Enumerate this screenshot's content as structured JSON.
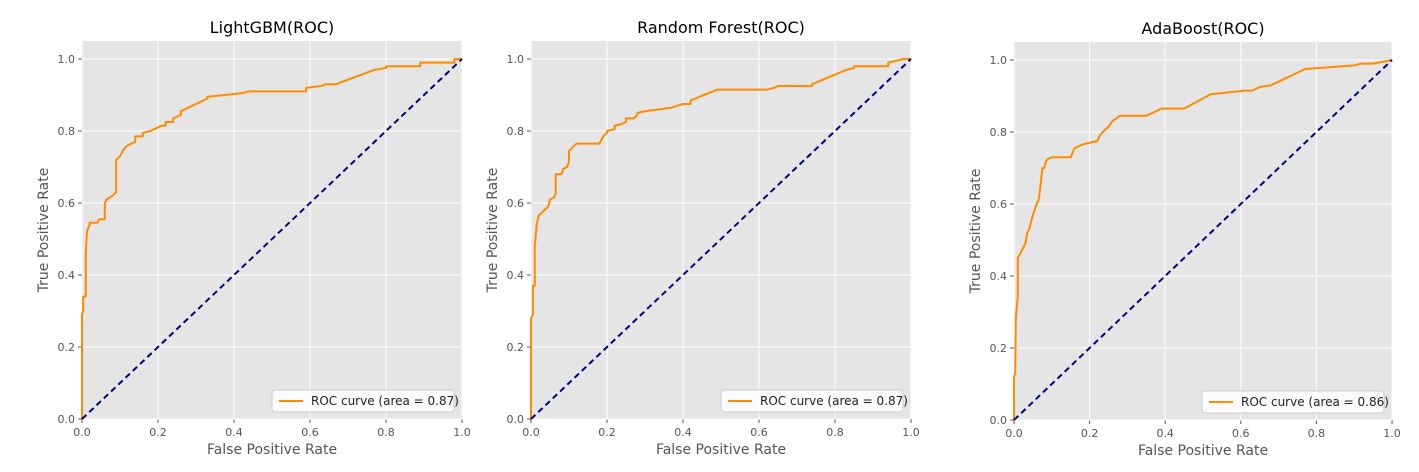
{
  "colors": {
    "roc_curve": "#ff8c00",
    "chance_line": "#000080",
    "plot_background": "#e5e5e5",
    "grid": "#ffffff"
  },
  "chart_data": [
    {
      "type": "line",
      "title": "LightGBM(ROC)",
      "xlabel": "False Positive Rate",
      "ylabel": "True Positive Rate",
      "xlim": [
        0.0,
        1.0
      ],
      "ylim": [
        0.0,
        1.05
      ],
      "xticks": [
        "0.0",
        "0.2",
        "0.4",
        "0.6",
        "0.8",
        "1.0"
      ],
      "yticks": [
        "0.0",
        "0.2",
        "0.4",
        "0.6",
        "0.8",
        "1.0"
      ],
      "grid": true,
      "legend_position": "lower-right",
      "series": [
        {
          "name": "ROC curve (area = 0.87)",
          "style": "solid",
          "x": [
            0.0,
            0.0,
            0.003,
            0.003,
            0.01,
            0.01,
            0.013,
            0.02,
            0.02,
            0.04,
            0.045,
            0.06,
            0.06,
            0.065,
            0.08,
            0.09,
            0.09,
            0.1,
            0.11,
            0.12,
            0.14,
            0.14,
            0.16,
            0.16,
            0.18,
            0.19,
            0.2,
            0.21,
            0.22,
            0.22,
            0.24,
            0.24,
            0.26,
            0.26,
            0.3,
            0.33,
            0.33,
            0.42,
            0.44,
            0.59,
            0.59,
            0.63,
            0.64,
            0.67,
            0.68,
            0.77,
            0.8,
            0.8,
            0.89,
            0.89,
            0.98,
            0.98,
            1.0
          ],
          "y": [
            0.0,
            0.29,
            0.3,
            0.34,
            0.34,
            0.46,
            0.52,
            0.54,
            0.545,
            0.545,
            0.555,
            0.555,
            0.6,
            0.61,
            0.62,
            0.63,
            0.72,
            0.73,
            0.75,
            0.76,
            0.77,
            0.785,
            0.785,
            0.795,
            0.8,
            0.805,
            0.81,
            0.815,
            0.815,
            0.825,
            0.825,
            0.835,
            0.845,
            0.855,
            0.875,
            0.89,
            0.895,
            0.905,
            0.91,
            0.91,
            0.92,
            0.925,
            0.93,
            0.93,
            0.935,
            0.97,
            0.975,
            0.98,
            0.98,
            0.99,
            0.99,
            1.0,
            1.0
          ]
        },
        {
          "style": "dashed",
          "x": [
            0.0,
            1.0
          ],
          "y": [
            0.0,
            1.0
          ]
        }
      ]
    },
    {
      "type": "line",
      "title": "Random Forest(ROC)",
      "xlabel": "False Positive Rate",
      "ylabel": "True Positive Rate",
      "xlim": [
        0.0,
        1.0
      ],
      "ylim": [
        0.0,
        1.05
      ],
      "xticks": [
        "0.0",
        "0.2",
        "0.4",
        "0.6",
        "0.8",
        "1.0"
      ],
      "yticks": [
        "0.0",
        "0.2",
        "0.4",
        "0.6",
        "0.8",
        "1.0"
      ],
      "grid": true,
      "legend_position": "lower-right",
      "series": [
        {
          "name": "ROC curve (area = 0.87)",
          "style": "solid",
          "x": [
            0.0,
            0.0,
            0.005,
            0.005,
            0.01,
            0.01,
            0.015,
            0.02,
            0.03,
            0.04,
            0.045,
            0.05,
            0.06,
            0.065,
            0.065,
            0.08,
            0.085,
            0.095,
            0.1,
            0.1,
            0.11,
            0.12,
            0.18,
            0.19,
            0.2,
            0.2,
            0.22,
            0.22,
            0.24,
            0.25,
            0.25,
            0.27,
            0.28,
            0.28,
            0.3,
            0.37,
            0.4,
            0.42,
            0.42,
            0.49,
            0.62,
            0.64,
            0.65,
            0.74,
            0.74,
            0.83,
            0.85,
            0.85,
            0.94,
            0.94,
            0.98,
            1.0
          ],
          "y": [
            0.0,
            0.28,
            0.29,
            0.37,
            0.37,
            0.48,
            0.54,
            0.565,
            0.575,
            0.585,
            0.59,
            0.61,
            0.615,
            0.625,
            0.68,
            0.68,
            0.695,
            0.7,
            0.715,
            0.745,
            0.755,
            0.765,
            0.765,
            0.785,
            0.795,
            0.8,
            0.805,
            0.815,
            0.82,
            0.825,
            0.835,
            0.835,
            0.845,
            0.85,
            0.855,
            0.865,
            0.875,
            0.875,
            0.885,
            0.915,
            0.915,
            0.92,
            0.925,
            0.925,
            0.93,
            0.97,
            0.975,
            0.98,
            0.98,
            0.99,
            1.0,
            1.0
          ]
        },
        {
          "style": "dashed",
          "x": [
            0.0,
            1.0
          ],
          "y": [
            0.0,
            1.0
          ]
        }
      ]
    },
    {
      "type": "line",
      "title": "AdaBoost(ROC)",
      "xlabel": "False Positive Rate",
      "ylabel": "True Positive Rate",
      "xlim": [
        0.0,
        1.0
      ],
      "ylim": [
        0.0,
        1.05
      ],
      "xticks": [
        "0.0",
        "0.2",
        "0.4",
        "0.6",
        "0.8",
        "1.0"
      ],
      "yticks": [
        "0.0",
        "0.2",
        "0.4",
        "0.6",
        "0.8",
        "1.0"
      ],
      "grid": true,
      "legend_position": "lower-right",
      "series": [
        {
          "name": "ROC curve (area = 0.86)",
          "style": "solid",
          "x": [
            0.0,
            0.0,
            0.003,
            0.005,
            0.01,
            0.01,
            0.02,
            0.03,
            0.035,
            0.04,
            0.05,
            0.06,
            0.065,
            0.07,
            0.075,
            0.08,
            0.085,
            0.09,
            0.1,
            0.15,
            0.16,
            0.18,
            0.22,
            0.23,
            0.25,
            0.26,
            0.28,
            0.31,
            0.35,
            0.39,
            0.45,
            0.52,
            0.61,
            0.63,
            0.65,
            0.68,
            0.77,
            0.9,
            0.92,
            0.95,
            1.0
          ],
          "y": [
            0.0,
            0.12,
            0.13,
            0.29,
            0.34,
            0.45,
            0.47,
            0.49,
            0.52,
            0.53,
            0.57,
            0.6,
            0.61,
            0.65,
            0.7,
            0.7,
            0.72,
            0.725,
            0.73,
            0.73,
            0.755,
            0.765,
            0.775,
            0.795,
            0.815,
            0.83,
            0.845,
            0.845,
            0.845,
            0.865,
            0.865,
            0.905,
            0.915,
            0.915,
            0.925,
            0.93,
            0.975,
            0.985,
            0.99,
            0.99,
            1.0
          ]
        },
        {
          "style": "dashed",
          "x": [
            0.0,
            1.0
          ],
          "y": [
            0.0,
            1.0
          ]
        }
      ]
    }
  ]
}
